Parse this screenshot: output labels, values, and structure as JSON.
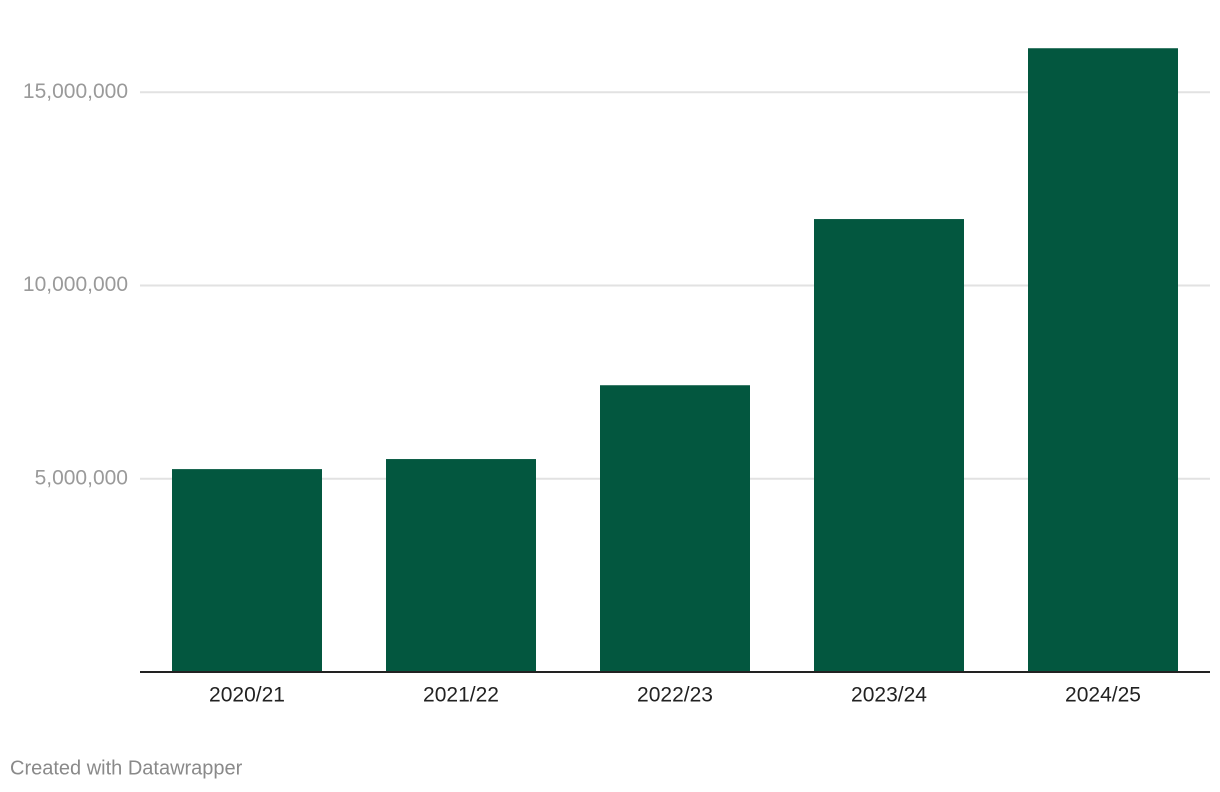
{
  "chart_data": {
    "type": "bar",
    "categories": [
      "2020/21",
      "2021/22",
      "2022/23",
      "2023/24",
      "2024/25"
    ],
    "values": [
      5250000,
      5510000,
      7420000,
      11720000,
      16140000
    ],
    "color": "#03573f",
    "ylim": [
      0,
      17000000
    ],
    "yticks": [
      {
        "value": 5000000,
        "label": "5,000,000"
      },
      {
        "value": 10000000,
        "label": "10,000,000"
      },
      {
        "value": 15000000,
        "label": "15,000,000"
      }
    ],
    "grid": true,
    "note": "Created with Datawrapper"
  }
}
